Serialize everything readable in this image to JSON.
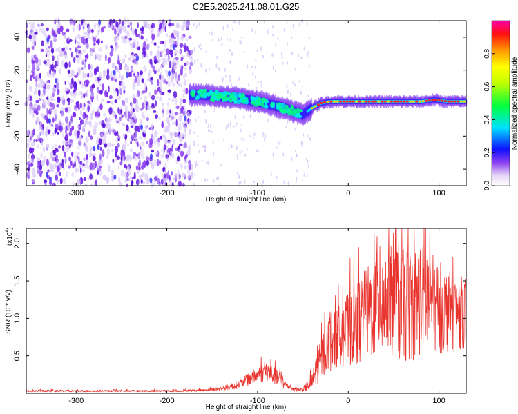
{
  "title": "C2E5.2025.241.08.01.G25",
  "chart_data": [
    {
      "type": "heatmap",
      "name": "spectrogram",
      "xlabel": "Height of straight line (km)",
      "ylabel": "Frequency (Hz)",
      "xlim": [
        -355,
        130
      ],
      "ylim": [
        -50,
        50
      ],
      "xticks": [
        -300,
        -200,
        -100,
        0,
        100
      ],
      "xtick_labels": [
        "-300",
        "-200",
        "-100",
        "0",
        "100"
      ],
      "yticks": [
        -40,
        -20,
        0,
        20,
        40
      ],
      "ytick_labels": [
        "-40",
        "-20",
        "0",
        "20",
        "40"
      ],
      "ridge": {
        "x": [
          -175,
          -160,
          -140,
          -120,
          -100,
          -85,
          -70,
          -60,
          -50,
          -40,
          -30,
          -20,
          -10,
          0,
          20,
          40,
          60,
          80,
          95,
          110,
          130
        ],
        "y": [
          5,
          5,
          4,
          3,
          1,
          -1,
          -3,
          -5,
          -7,
          -3,
          0,
          1,
          1,
          1,
          1,
          1,
          1,
          1,
          2,
          1,
          1
        ]
      },
      "colorbar": {
        "label": "Normalized spectral amplitude",
        "ticks": [
          0.0,
          0.2,
          0.4,
          0.6,
          0.8
        ],
        "tick_labels": [
          "0.0",
          "0.2",
          "0.4",
          "0.6",
          "0.8"
        ],
        "range": [
          0,
          1
        ]
      }
    },
    {
      "type": "line",
      "name": "snr",
      "xlabel": "Height of straight line (km)",
      "ylabel": "SNR (10 * v/v)",
      "multiplier_label": "(x10",
      "multiplier_exp": "4",
      "multiplier_close": ")",
      "xlim": [
        -355,
        130
      ],
      "ylim": [
        0,
        2.2
      ],
      "xticks": [
        -300,
        -200,
        -100,
        0,
        100
      ],
      "xtick_labels": [
        "-300",
        "-200",
        "-100",
        "0",
        "100"
      ],
      "yticks": [
        0.5,
        1.0,
        1.5,
        2.0
      ],
      "ytick_labels": [
        "0.5",
        "1.0",
        "1.5",
        "2.0"
      ],
      "color": "#e8322c",
      "envelope_x": [
        -355,
        -200,
        -160,
        -140,
        -120,
        -100,
        -90,
        -80,
        -70,
        -60,
        -50,
        -40,
        -30,
        -20,
        -10,
        0,
        10,
        20,
        30,
        40,
        50,
        60,
        70,
        80,
        90,
        100,
        110,
        120,
        130
      ],
      "envelope_y": [
        0.03,
        0.03,
        0.04,
        0.06,
        0.12,
        0.25,
        0.3,
        0.22,
        0.12,
        0.05,
        0.05,
        0.15,
        0.45,
        0.7,
        0.75,
        0.85,
        0.95,
        1.05,
        1.15,
        1.25,
        1.2,
        1.15,
        1.2,
        1.25,
        1.2,
        1.15,
        1.1,
        1.05,
        1.1
      ],
      "spread_y": [
        0.01,
        0.01,
        0.01,
        0.02,
        0.04,
        0.08,
        0.1,
        0.08,
        0.05,
        0.02,
        0.02,
        0.08,
        0.2,
        0.3,
        0.3,
        0.35,
        0.4,
        0.45,
        0.5,
        0.55,
        0.55,
        0.55,
        0.55,
        0.55,
        0.5,
        0.45,
        0.4,
        0.35,
        0.35
      ]
    }
  ]
}
